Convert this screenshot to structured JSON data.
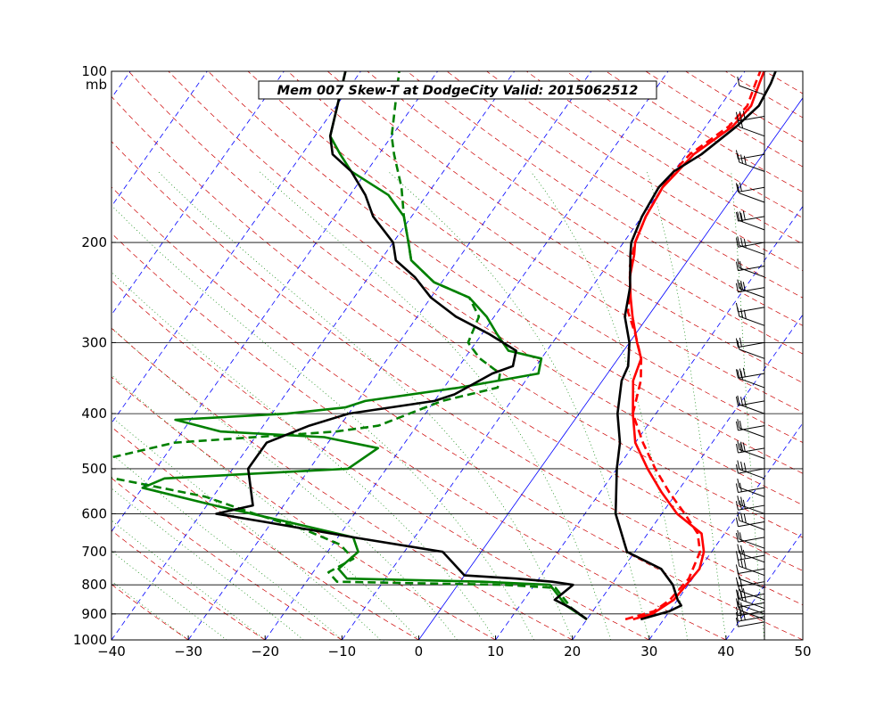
{
  "chart_data": {
    "type": "line",
    "title": "Mem 007  Skew-T at DodgeCity   Valid: 2015062512",
    "pressure_unit": "mb",
    "xlim": [
      -40,
      50
    ],
    "pressure_range": [
      1000,
      100
    ],
    "x_ticks": [
      "−40",
      "−30",
      "−20",
      "−10",
      "0",
      "10",
      "20",
      "30",
      "40",
      "50"
    ],
    "x_tick_values": [
      -40,
      -30,
      -20,
      -10,
      0,
      10,
      20,
      30,
      40,
      50
    ],
    "p_ticks": [
      "100",
      "200",
      "300",
      "400",
      "500",
      "600",
      "700",
      "800",
      "900",
      "1000"
    ],
    "p_tick_values": [
      100,
      200,
      300,
      400,
      500,
      600,
      700,
      800,
      900,
      1000
    ],
    "isobar_lines": [
      200,
      300,
      400,
      500,
      600,
      700,
      800,
      900
    ],
    "grid": true,
    "legend": "none",
    "colors": {
      "temperature": "#ff0000",
      "dewpoint": "#008000",
      "environment": "#000000",
      "isotherm": "#0000ff",
      "dry_adiabat": "#cc0000",
      "moist_adiabat": "#008000"
    },
    "series": [
      {
        "role": "temperature",
        "color": "#ff0000",
        "style": "solid",
        "points": [
          [
            26,
            920
          ],
          [
            28,
            900
          ],
          [
            29.5,
            850
          ],
          [
            30,
            750
          ],
          [
            29,
            700
          ],
          [
            27,
            650
          ],
          [
            22,
            600
          ],
          [
            18,
            550
          ],
          [
            14,
            500
          ],
          [
            10,
            450
          ],
          [
            7,
            400
          ],
          [
            4,
            350
          ],
          [
            3,
            320
          ],
          [
            1,
            300
          ],
          [
            -2,
            270
          ],
          [
            -4,
            250
          ],
          [
            -6,
            230
          ],
          [
            -7.5,
            210
          ],
          [
            -8.5,
            200
          ],
          [
            -9.5,
            180
          ],
          [
            -10,
            160
          ],
          [
            -9.5,
            150
          ],
          [
            -9,
            140
          ],
          [
            -6.5,
            125
          ],
          [
            -6,
            115
          ],
          [
            -7,
            105
          ],
          [
            -7.5,
            100
          ]
        ]
      },
      {
        "role": "temperature-2",
        "color": "#ff0000",
        "style": "dashed",
        "points": [
          [
            25,
            920
          ],
          [
            28,
            890
          ],
          [
            29,
            850
          ],
          [
            29.5,
            780
          ],
          [
            28.5,
            700
          ],
          [
            26.5,
            650
          ],
          [
            23,
            600
          ],
          [
            19,
            550
          ],
          [
            15,
            500
          ],
          [
            11,
            450
          ],
          [
            7,
            400
          ],
          [
            5,
            350
          ],
          [
            3,
            320
          ],
          [
            0,
            290
          ],
          [
            -3,
            265
          ],
          [
            -5,
            240
          ],
          [
            -7,
            220
          ],
          [
            -8.5,
            200
          ],
          [
            -9.5,
            180
          ],
          [
            -10,
            160
          ],
          [
            -10,
            150
          ],
          [
            -9.5,
            140
          ],
          [
            -7,
            125
          ],
          [
            -6.5,
            115
          ],
          [
            -7.5,
            105
          ],
          [
            -8,
            100
          ]
        ]
      },
      {
        "role": "environment",
        "color": "#000000",
        "style": "solid",
        "points": [
          [
            27,
            920
          ],
          [
            30,
            890
          ],
          [
            31,
            870
          ],
          [
            30,
            850
          ],
          [
            28,
            800
          ],
          [
            25,
            750
          ],
          [
            19,
            700
          ],
          [
            14,
            600
          ],
          [
            10,
            500
          ],
          [
            8,
            450
          ],
          [
            5,
            400
          ],
          [
            2.5,
            350
          ],
          [
            2,
            330
          ],
          [
            0,
            300
          ],
          [
            -3,
            270
          ],
          [
            -5,
            240
          ],
          [
            -8,
            210
          ],
          [
            -9,
            200
          ],
          [
            -10,
            180
          ],
          [
            -10.5,
            160
          ],
          [
            -10,
            150
          ],
          [
            -8,
            140
          ],
          [
            -6,
            125
          ],
          [
            -5,
            115
          ],
          [
            -5.5,
            105
          ],
          [
            -6,
            100
          ]
        ]
      },
      {
        "role": "dewpoint",
        "color": "#008000",
        "style": "solid",
        "points": [
          [
            20,
            920
          ],
          [
            16,
            870
          ],
          [
            12,
            800
          ],
          [
            3,
            790
          ],
          [
            -15,
            780
          ],
          [
            -17,
            750
          ],
          [
            -16,
            700
          ],
          [
            -18,
            660
          ],
          [
            -28,
            620
          ],
          [
            -39,
            580
          ],
          [
            -50,
            540
          ],
          [
            -48,
            520
          ],
          [
            -25,
            500
          ],
          [
            -23,
            460
          ],
          [
            -31,
            440
          ],
          [
            -45,
            430
          ],
          [
            -52,
            410
          ],
          [
            -38,
            400
          ],
          [
            -31,
            390
          ],
          [
            -29,
            380
          ],
          [
            -18,
            360
          ],
          [
            -9,
            340
          ],
          [
            -10,
            320
          ],
          [
            -15,
            310
          ],
          [
            -18,
            290
          ],
          [
            -21,
            270
          ],
          [
            -25,
            250
          ],
          [
            -31,
            235
          ],
          [
            -36,
            215
          ],
          [
            -38,
            200
          ],
          [
            -41,
            180
          ],
          [
            -45,
            165
          ],
          [
            -52,
            150
          ],
          [
            -55,
            140
          ],
          [
            -58,
            130
          ],
          [
            -62,
            100
          ]
        ]
      },
      {
        "role": "dewpoint-2",
        "color": "#008000",
        "style": "dashed",
        "points": [
          [
            20,
            920
          ],
          [
            17,
            880
          ],
          [
            13,
            810
          ],
          [
            6,
            800
          ],
          [
            -16,
            790
          ],
          [
            -18,
            760
          ],
          [
            -16,
            720
          ],
          [
            -19,
            680
          ],
          [
            -25,
            640
          ],
          [
            -33,
            600
          ],
          [
            -41,
            560
          ],
          [
            -51,
            530
          ],
          [
            -62,
            500
          ],
          [
            -50,
            450
          ],
          [
            -30,
            430
          ],
          [
            -25,
            420
          ],
          [
            -19,
            380
          ],
          [
            -13,
            360
          ],
          [
            -14,
            340
          ],
          [
            -18,
            320
          ],
          [
            -21,
            300
          ],
          [
            -22,
            270
          ],
          [
            -25,
            250
          ],
          [
            -31,
            235
          ],
          [
            -36,
            215
          ],
          [
            -38,
            200
          ],
          [
            -41,
            180
          ],
          [
            -44,
            160
          ],
          [
            -48,
            140
          ],
          [
            -50,
            130
          ],
          [
            -55,
            100
          ]
        ]
      },
      {
        "role": "dewpoint-environment",
        "color": "#000000",
        "style": "solid",
        "points": [
          [
            20,
            920
          ],
          [
            17,
            880
          ],
          [
            14,
            850
          ],
          [
            15,
            800
          ],
          [
            12,
            790
          ],
          [
            7,
            780
          ],
          [
            0,
            770
          ],
          [
            -5,
            700
          ],
          [
            -18,
            660
          ],
          [
            -31,
            620
          ],
          [
            -38,
            600
          ],
          [
            -34,
            580
          ],
          [
            -38,
            500
          ],
          [
            -38,
            450
          ],
          [
            -34,
            420
          ],
          [
            -30,
            400
          ],
          [
            -20,
            380
          ],
          [
            -18,
            370
          ],
          [
            -15,
            340
          ],
          [
            -13,
            330
          ],
          [
            -14,
            310
          ],
          [
            -19,
            290
          ],
          [
            -25,
            270
          ],
          [
            -30,
            250
          ],
          [
            -34,
            230
          ],
          [
            -38,
            215
          ],
          [
            -40,
            200
          ],
          [
            -45,
            180
          ],
          [
            -48,
            165
          ],
          [
            -52,
            150
          ],
          [
            -56,
            140
          ],
          [
            -58,
            130
          ],
          [
            -62,
            100
          ]
        ]
      }
    ],
    "wind_barbs_pressures": [
      930,
      920,
      910,
      900,
      890,
      880,
      860,
      850,
      830,
      810,
      790,
      770,
      750,
      730,
      710,
      690,
      660,
      640,
      620,
      600,
      580,
      560,
      540,
      520,
      500,
      480,
      460,
      440,
      420,
      400,
      380,
      360,
      340,
      320,
      300,
      280,
      260,
      250,
      240,
      230,
      220,
      210,
      200,
      190,
      180,
      170,
      160,
      150,
      140,
      130,
      120,
      110
    ]
  }
}
